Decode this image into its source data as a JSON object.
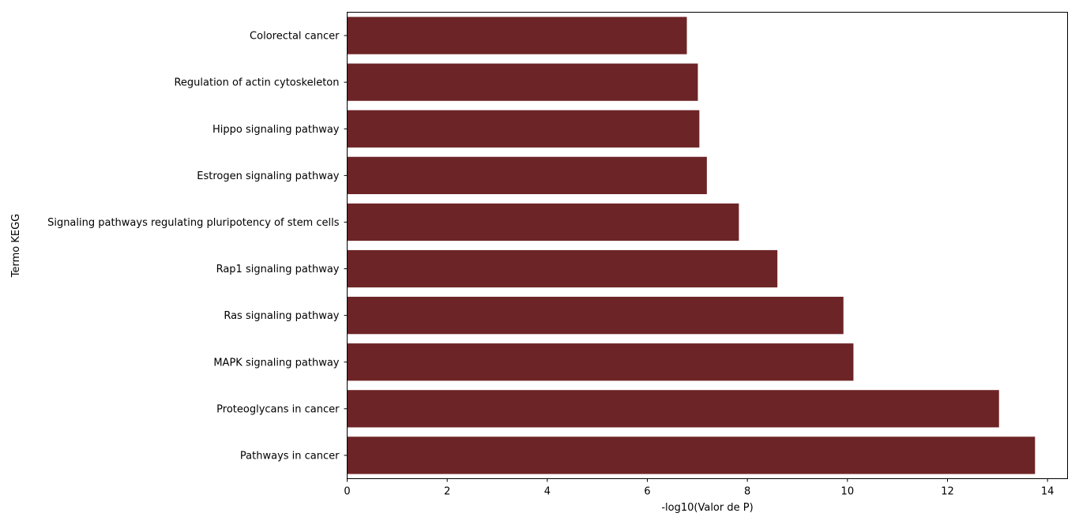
{
  "chart_data": {
    "type": "bar",
    "orientation": "horizontal",
    "title": "",
    "xlabel": "-log10(Valor de P)",
    "ylabel": "Termo KEGG",
    "xlim": [
      0,
      14.4
    ],
    "xticks": [
      0,
      2,
      4,
      6,
      8,
      10,
      12,
      14
    ],
    "grid": false,
    "legend": "none",
    "bar_color": "#6d2426",
    "categories": [
      "Colorectal cancer",
      "Regulation of actin cytoskeleton",
      "Hippo signaling pathway",
      "Estrogen signaling pathway",
      "Signaling pathways regulating pluripotency of stem cells",
      "Rap1 signaling pathway",
      "Ras signaling pathway",
      "MAPK signaling pathway",
      "Proteoglycans in cancer",
      "Pathways in cancer"
    ],
    "values": [
      6.79,
      7.01,
      7.04,
      7.19,
      7.83,
      8.6,
      9.92,
      10.12,
      13.03,
      13.75
    ]
  }
}
